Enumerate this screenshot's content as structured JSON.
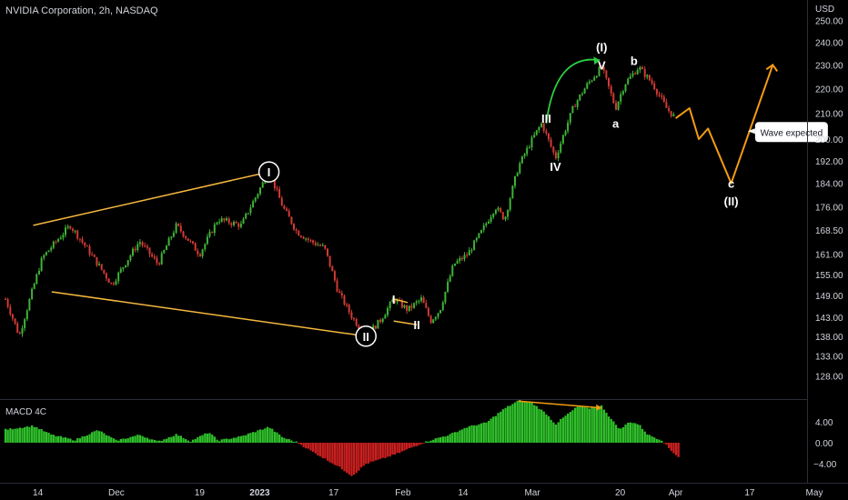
{
  "header": {
    "symbol_title": "NVIDIA Corporation, 2h, NASDAQ",
    "currency": "USD"
  },
  "colors": {
    "background": "#000000",
    "up": "#3fb337",
    "down": "#d13b34",
    "macd_pos": "#2fbf2a",
    "macd_neg": "#c91f1f",
    "trend": "#f5b83f",
    "projection": "#f39c12",
    "arrow": "#2ecc40",
    "axis_text": "#d1d4dc"
  },
  "chart_data": [
    {
      "type": "candlestick",
      "title": "NVIDIA Corporation, 2h, NASDAQ",
      "ylabel": "USD",
      "y_scale": "log",
      "ylim": [
        127,
        262
      ],
      "yticks": [
        128.0,
        133.0,
        138.0,
        143.0,
        149.0,
        155.0,
        161.0,
        168.5,
        176.0,
        184.0,
        192.0,
        200.0,
        210.0,
        220.0,
        230.0,
        240.0,
        250.0
      ],
      "xticks": [
        "14",
        "Dec",
        "19",
        "2023",
        "17",
        "Feb",
        "14",
        "Mar",
        "20",
        "Apr",
        "17",
        "May"
      ],
      "grid": false,
      "price_path": [
        {
          "x": "Nov 7",
          "y": 148
        },
        {
          "x": "Nov 10",
          "y": 138
        },
        {
          "x": "Nov 15",
          "y": 160
        },
        {
          "x": "Nov 21",
          "y": 170
        },
        {
          "x": "Nov 25",
          "y": 162
        },
        {
          "x": "Nov 30",
          "y": 152
        },
        {
          "x": "Dec 6",
          "y": 165
        },
        {
          "x": "Dec 10",
          "y": 158
        },
        {
          "x": "Dec 14",
          "y": 170
        },
        {
          "x": "Dec 19",
          "y": 161
        },
        {
          "x": "Dec 23",
          "y": 172
        },
        {
          "x": "Dec 28",
          "y": 170
        },
        {
          "x": "Jan 3",
          "y": 188
        },
        {
          "x": "Jan 6",
          "y": 176
        },
        {
          "x": "Jan 9",
          "y": 168
        },
        {
          "x": "Jan 12",
          "y": 165
        },
        {
          "x": "Jan 15",
          "y": 163
        },
        {
          "x": "Jan 18",
          "y": 150
        },
        {
          "x": "Jan 21",
          "y": 143
        },
        {
          "x": "Jan 24",
          "y": 138
        },
        {
          "x": "Jan 27",
          "y": 142
        },
        {
          "x": "Jan 30",
          "y": 148
        },
        {
          "x": "Feb 2",
          "y": 145
        },
        {
          "x": "Feb 5",
          "y": 148
        },
        {
          "x": "Feb 7",
          "y": 142
        },
        {
          "x": "Feb 9",
          "y": 145
        },
        {
          "x": "Feb 12",
          "y": 158
        },
        {
          "x": "Feb 15",
          "y": 161
        },
        {
          "x": "Feb 18",
          "y": 168
        },
        {
          "x": "Feb 21",
          "y": 176
        },
        {
          "x": "Feb 23",
          "y": 172
        },
        {
          "x": "Feb 26",
          "y": 190
        },
        {
          "x": "Mar 1",
          "y": 200
        },
        {
          "x": "Mar 3",
          "y": 206
        },
        {
          "x": "Mar 6",
          "y": 193
        },
        {
          "x": "Mar 10",
          "y": 213
        },
        {
          "x": "Mar 13",
          "y": 222
        },
        {
          "x": "Mar 16",
          "y": 229
        },
        {
          "x": "Mar 19",
          "y": 212
        },
        {
          "x": "Mar 21",
          "y": 222
        },
        {
          "x": "Mar 24",
          "y": 229
        },
        {
          "x": "Mar 27",
          "y": 222
        },
        {
          "x": "Mar 30",
          "y": 212
        },
        {
          "x": "Apr 1",
          "y": 208
        }
      ],
      "wave_labels": [
        {
          "text": "I",
          "circled": true,
          "x": "Jan 3",
          "y": 188
        },
        {
          "text": "II",
          "circled": true,
          "x": "Jan 24",
          "y": 138
        },
        {
          "text": "I",
          "circled": false,
          "x": "Jan 30",
          "y": 148
        },
        {
          "text": "II",
          "circled": false,
          "x": "Feb 4",
          "y": 141
        },
        {
          "text": "III",
          "circled": false,
          "x": "Mar 4",
          "y": 208
        },
        {
          "text": "IV",
          "circled": false,
          "x": "Mar 6",
          "y": 190
        },
        {
          "text": "V",
          "circled": false,
          "x": "Mar 16",
          "y": 230
        },
        {
          "text": "(I)",
          "circled": false,
          "x": "Mar 16",
          "y": 238
        },
        {
          "text": "a",
          "circled": false,
          "x": "Mar 19",
          "y": 206
        },
        {
          "text": "b",
          "circled": false,
          "x": "Mar 23",
          "y": 232
        },
        {
          "text": "c",
          "circled": false,
          "x": "Apr 13",
          "y": 184
        },
        {
          "text": "(II)",
          "circled": false,
          "x": "Apr 13",
          "y": 178
        }
      ],
      "trendlines": [
        {
          "from": {
            "x": "Nov 13",
            "y": 170
          },
          "to": {
            "x": "Jan 3",
            "y": 188
          }
        },
        {
          "from": {
            "x": "Nov 17",
            "y": 150
          },
          "to": {
            "x": "Jan 24",
            "y": 138
          }
        },
        {
          "from": {
            "x": "Jan 30",
            "y": 148
          },
          "to": {
            "x": "Feb 2",
            "y": 147
          }
        },
        {
          "from": {
            "x": "Jan 30",
            "y": 142
          },
          "to": {
            "x": "Feb 4",
            "y": 141
          }
        }
      ],
      "projection_path": [
        {
          "x": "Apr 1",
          "y": 208
        },
        {
          "x": "Apr 4",
          "y": 212
        },
        {
          "x": "Apr 6",
          "y": 200
        },
        {
          "x": "Apr 8",
          "y": 204
        },
        {
          "x": "Apr 13",
          "y": 184
        },
        {
          "x": "Apr 22",
          "y": 230
        }
      ],
      "annotation": {
        "text": "Wave expected",
        "x": "Apr 17",
        "y": 203
      }
    },
    {
      "type": "bar",
      "title": "MACD 4C",
      "yticks": [
        4.0,
        0.0,
        -4.0
      ],
      "ylim": [
        -6.8,
        8.3
      ],
      "histogram_path": [
        {
          "x": "Nov 7",
          "y": 2.5
        },
        {
          "x": "Nov 13",
          "y": 3.2
        },
        {
          "x": "Nov 17",
          "y": 1.5
        },
        {
          "x": "Nov 22",
          "y": 0.5
        },
        {
          "x": "Nov 27",
          "y": 2.4
        },
        {
          "x": "Dec 1",
          "y": 0.4
        },
        {
          "x": "Dec 6",
          "y": 1.5
        },
        {
          "x": "Dec 10",
          "y": 0.2
        },
        {
          "x": "Dec 14",
          "y": 1.6
        },
        {
          "x": "Dec 17",
          "y": 0.3
        },
        {
          "x": "Dec 21",
          "y": 2.0
        },
        {
          "x": "Dec 23",
          "y": 0.4
        },
        {
          "x": "Dec 28",
          "y": 1.2
        },
        {
          "x": "Jan 3",
          "y": 3.0
        },
        {
          "x": "Jan 6",
          "y": 1.0
        },
        {
          "x": "Jan 9",
          "y": 0.1
        },
        {
          "x": "Jan 12",
          "y": -1.5
        },
        {
          "x": "Jan 15",
          "y": -3.0
        },
        {
          "x": "Jan 18",
          "y": -4.5
        },
        {
          "x": "Jan 21",
          "y": -6.3
        },
        {
          "x": "Jan 24",
          "y": -4.0
        },
        {
          "x": "Jan 27",
          "y": -3.2
        },
        {
          "x": "Jan 31",
          "y": -2.0
        },
        {
          "x": "Feb 4",
          "y": -0.5
        },
        {
          "x": "Feb 7",
          "y": 0.5
        },
        {
          "x": "Feb 11",
          "y": 1.5
        },
        {
          "x": "Feb 15",
          "y": 3.0
        },
        {
          "x": "Feb 19",
          "y": 3.8
        },
        {
          "x": "Feb 23",
          "y": 6.5
        },
        {
          "x": "Feb 26",
          "y": 8.0
        },
        {
          "x": "Mar 1",
          "y": 7.5
        },
        {
          "x": "Mar 4",
          "y": 5.5
        },
        {
          "x": "Mar 6",
          "y": 3.5
        },
        {
          "x": "Mar 8",
          "y": 5.0
        },
        {
          "x": "Mar 11",
          "y": 7.0
        },
        {
          "x": "Mar 13",
          "y": 6.5
        },
        {
          "x": "Mar 16",
          "y": 7.0
        },
        {
          "x": "Mar 18",
          "y": 4.5
        },
        {
          "x": "Mar 20",
          "y": 2.5
        },
        {
          "x": "Mar 22",
          "y": 4.0
        },
        {
          "x": "Mar 24",
          "y": 3.5
        },
        {
          "x": "Mar 26",
          "y": 1.5
        },
        {
          "x": "Mar 29",
          "y": 0.5
        },
        {
          "x": "Mar 31",
          "y": -1.5
        },
        {
          "x": "Apr 2",
          "y": -3.0
        }
      ],
      "divergence_line": {
        "from": {
          "x": "Feb 26",
          "y": 7.9
        },
        "to": {
          "x": "Mar 16",
          "y": 6.6
        }
      }
    }
  ]
}
